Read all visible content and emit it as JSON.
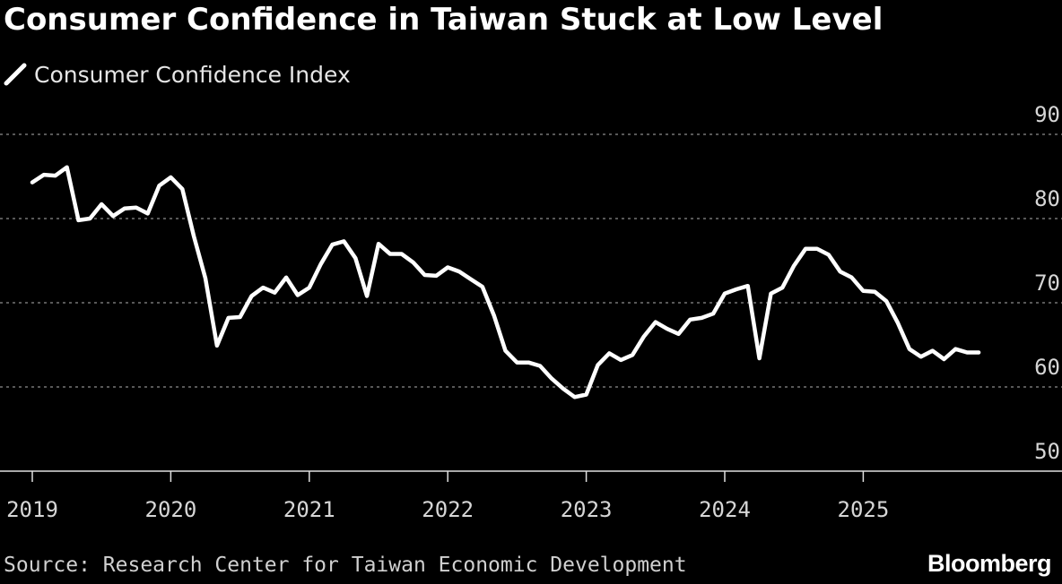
{
  "title": "Consumer Confidence in Taiwan Stuck at Low Level",
  "source": "Source: Research Center for Taiwan Economic Development",
  "brand": "Bloomberg",
  "colors": {
    "background": "#000000",
    "line": "#ffffff",
    "grid": "#8c8c8c",
    "text": "#ffffff"
  },
  "chart_data": {
    "type": "line",
    "title": "Consumer Confidence in Taiwan Stuck at Low Level",
    "xlabel": "",
    "ylabel": "",
    "ylim": [
      50,
      90
    ],
    "yticks": [
      50,
      60,
      70,
      80,
      90
    ],
    "xticks": [
      "2019",
      "2020",
      "2021",
      "2022",
      "2023",
      "2024",
      "2025"
    ],
    "x_start": "2019-01",
    "legend": [
      "Consumer Confidence Index"
    ],
    "legend_position": "top-left",
    "grid": true,
    "series": [
      {
        "name": "Consumer Confidence Index",
        "values": [
          84.3,
          85.2,
          85.1,
          86.1,
          79.8,
          80.0,
          81.7,
          80.3,
          81.2,
          81.3,
          80.6,
          83.9,
          84.9,
          83.5,
          77.9,
          72.9,
          64.9,
          68.2,
          68.3,
          70.8,
          71.8,
          71.2,
          73.0,
          70.9,
          71.8,
          74.6,
          76.9,
          77.3,
          75.3,
          70.8,
          77.0,
          75.8,
          75.8,
          74.8,
          73.3,
          73.2,
          74.2,
          73.7,
          72.8,
          71.9,
          68.5,
          64.3,
          62.9,
          62.9,
          62.5,
          61.0,
          59.8,
          58.8,
          59.1,
          62.6,
          64.0,
          63.2,
          63.8,
          66.0,
          67.7,
          66.9,
          66.3,
          68.0,
          68.2,
          68.7,
          71.1,
          71.6,
          72.0,
          63.4,
          71.1,
          71.8,
          74.4,
          76.4,
          76.4,
          75.7,
          73.7,
          73.0,
          71.4,
          71.3,
          70.2,
          67.6,
          64.5,
          63.6,
          64.3,
          63.3,
          64.5,
          64.1,
          64.1
        ]
      }
    ]
  }
}
